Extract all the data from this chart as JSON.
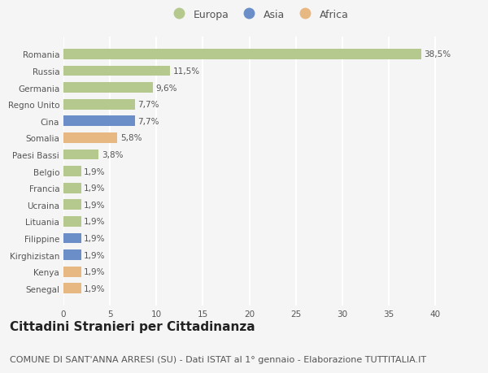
{
  "categories": [
    "Romania",
    "Russia",
    "Germania",
    "Regno Unito",
    "Cina",
    "Somalia",
    "Paesi Bassi",
    "Belgio",
    "Francia",
    "Ucraina",
    "Lituania",
    "Filippine",
    "Kirghizistan",
    "Kenya",
    "Senegal"
  ],
  "values": [
    38.5,
    11.5,
    9.6,
    7.7,
    7.7,
    5.8,
    3.8,
    1.9,
    1.9,
    1.9,
    1.9,
    1.9,
    1.9,
    1.9,
    1.9
  ],
  "labels": [
    "38,5%",
    "11,5%",
    "9,6%",
    "7,7%",
    "7,7%",
    "5,8%",
    "3,8%",
    "1,9%",
    "1,9%",
    "1,9%",
    "1,9%",
    "1,9%",
    "1,9%",
    "1,9%",
    "1,9%"
  ],
  "continent": [
    "Europa",
    "Europa",
    "Europa",
    "Europa",
    "Asia",
    "Africa",
    "Europa",
    "Europa",
    "Europa",
    "Europa",
    "Europa",
    "Asia",
    "Asia",
    "Africa",
    "Africa"
  ],
  "colors": {
    "Europa": "#b5c98e",
    "Asia": "#6b8ec8",
    "Africa": "#e8b882"
  },
  "legend_order": [
    "Europa",
    "Asia",
    "Africa"
  ],
  "xlim": [
    0,
    42
  ],
  "xticks": [
    0,
    5,
    10,
    15,
    20,
    25,
    30,
    35,
    40
  ],
  "title": "Cittadini Stranieri per Cittadinanza",
  "subtitle": "COMUNE DI SANT'ANNA ARRESI (SU) - Dati ISTAT al 1° gennaio - Elaborazione TUTTITALIA.IT",
  "bg_color": "#f5f5f5",
  "grid_color": "#ffffff",
  "bar_height": 0.62,
  "title_fontsize": 11,
  "subtitle_fontsize": 8,
  "label_fontsize": 7.5,
  "tick_fontsize": 7.5,
  "legend_fontsize": 9
}
